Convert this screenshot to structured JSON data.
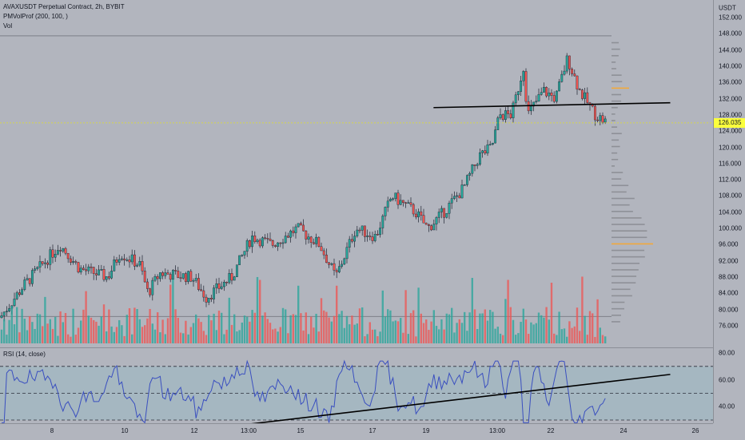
{
  "legend": {
    "symbol_line": "AVAXUSDT Perpetual Contract, 2h, BYBIT",
    "indicator_line": "PMVolProf (200, 100, )",
    "volume_line": "Vol",
    "rsi_line": "RSI (14, close)"
  },
  "price_axis": {
    "currency": "USDT",
    "ticks": [
      "152.000",
      "148.000",
      "144.000",
      "140.000",
      "136.000",
      "132.000",
      "128.000",
      "124.000",
      "120.000",
      "116.000",
      "112.000",
      "108.000",
      "104.000",
      "100.000",
      "96.000",
      "92.000",
      "88.000",
      "84.000",
      "80.000",
      "76.000"
    ],
    "tick_values": [
      152,
      148,
      144,
      140,
      136,
      132,
      128,
      124,
      120,
      116,
      112,
      108,
      104,
      100,
      96,
      92,
      88,
      84,
      80,
      76
    ],
    "current_price": "126.035",
    "current_value": 126.035
  },
  "rsi_axis": {
    "ticks": [
      "80.00",
      "60.00",
      "40.00"
    ],
    "tick_values": [
      80,
      60,
      40
    ],
    "upper_band": 70,
    "mid_band": 50,
    "lower_band": 30
  },
  "time_axis": {
    "labels": [
      "8",
      "10",
      "12",
      "13:00",
      "15",
      "17",
      "19",
      "13:00",
      "22",
      "24",
      "26"
    ]
  },
  "colors": {
    "background": "#b2b5be",
    "up": "#26a69a",
    "down": "#ef5350",
    "rsi_line": "#3a4fc0",
    "rsi_band": "#9fb8c2",
    "price_badge": "#fbff3c",
    "poc": "#f2a93b",
    "profile": "#8e9097"
  },
  "chart_data": {
    "type": "candlestick",
    "ylim": [
      74,
      154
    ],
    "trendlines": [
      {
        "name": "resistance",
        "from": [
          0.64,
          129.8
        ],
        "to": [
          0.94,
          131.0
        ]
      },
      {
        "name": "rsi-support",
        "from": [
          0.35,
          27
        ],
        "to": [
          0.94,
          64
        ]
      }
    ],
    "horizontal_levels": [
      147.5,
      78.3
    ],
    "volume_profile_poc": 96.5,
    "volume_profile_value_area_high": 134.5
  }
}
